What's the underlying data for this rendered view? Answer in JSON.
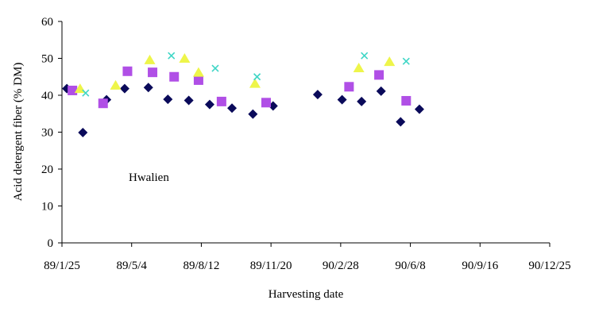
{
  "chart_data": {
    "type": "scatter",
    "title": "",
    "annotation": "Hwalien",
    "xlabel": "Harvesting date",
    "ylabel": "Acid detergent fiber (% DM)",
    "ylim": [
      0,
      60
    ],
    "yticks": [
      0,
      10,
      20,
      30,
      40,
      50,
      60
    ],
    "xlim": [
      "89/1/25",
      "90/12/25"
    ],
    "xtick_labels": [
      "89/1/25",
      "89/5/4",
      "89/8/12",
      "89/11/20",
      "90/2/28",
      "90/6/8",
      "90/9/16",
      "90/12/25"
    ],
    "grid": false,
    "legend": "none",
    "series": [
      {
        "marker": "diamond",
        "color": "#0a0a5a",
        "points": [
          {
            "x": "89/2/1",
            "y": 41.8
          },
          {
            "x": "89/2/24",
            "y": 29.9
          },
          {
            "x": "89/3/29",
            "y": 38.8
          },
          {
            "x": "89/4/24",
            "y": 41.8
          },
          {
            "x": "89/5/28",
            "y": 42.1
          },
          {
            "x": "89/6/25",
            "y": 38.9
          },
          {
            "x": "89/7/25",
            "y": 38.6
          },
          {
            "x": "89/8/24",
            "y": 37.5
          },
          {
            "x": "89/9/25",
            "y": 36.5
          },
          {
            "x": "89/10/25",
            "y": 34.9
          },
          {
            "x": "89/11/23",
            "y": 37.1
          },
          {
            "x": "90/1/26",
            "y": 40.2
          },
          {
            "x": "90/3/2",
            "y": 38.8
          },
          {
            "x": "90/3/30",
            "y": 38.3
          },
          {
            "x": "90/4/27",
            "y": 41.1
          },
          {
            "x": "90/5/25",
            "y": 32.8
          },
          {
            "x": "90/6/21",
            "y": 36.2
          }
        ]
      },
      {
        "marker": "square",
        "color": "#b04fe6",
        "points": [
          {
            "x": "89/2/9",
            "y": 41.3
          },
          {
            "x": "89/3/24",
            "y": 37.8
          },
          {
            "x": "89/4/28",
            "y": 46.5
          },
          {
            "x": "89/6/3",
            "y": 46.2
          },
          {
            "x": "89/7/4",
            "y": 45.0
          },
          {
            "x": "89/8/8",
            "y": 44.1
          },
          {
            "x": "89/9/10",
            "y": 38.3
          },
          {
            "x": "89/11/13",
            "y": 38.0
          },
          {
            "x": "90/3/12",
            "y": 42.3
          },
          {
            "x": "90/4/24",
            "y": 45.5
          },
          {
            "x": "90/6/2",
            "y": 38.5
          }
        ]
      },
      {
        "marker": "triangle",
        "color": "#eef54a",
        "points": [
          {
            "x": "89/2/20",
            "y": 41.7
          },
          {
            "x": "89/4/11",
            "y": 42.6
          },
          {
            "x": "89/5/30",
            "y": 49.5
          },
          {
            "x": "89/7/19",
            "y": 49.9
          },
          {
            "x": "89/8/8",
            "y": 46.1
          },
          {
            "x": "89/10/28",
            "y": 43.1
          },
          {
            "x": "90/3/26",
            "y": 47.3
          },
          {
            "x": "90/5/9",
            "y": 49.0
          }
        ]
      },
      {
        "marker": "x",
        "color": "#3fd6c6",
        "points": [
          {
            "x": "89/2/28",
            "y": 40.6
          },
          {
            "x": "89/6/30",
            "y": 50.7
          },
          {
            "x": "89/9/1",
            "y": 47.3
          },
          {
            "x": "89/10/31",
            "y": 45.0
          },
          {
            "x": "90/4/3",
            "y": 50.7
          },
          {
            "x": "90/6/2",
            "y": 49.2
          }
        ]
      }
    ]
  }
}
